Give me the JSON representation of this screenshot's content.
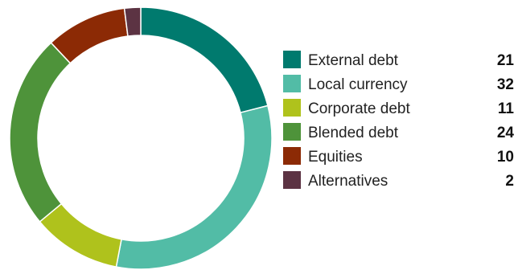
{
  "chart_data": {
    "type": "pie",
    "variant": "donut",
    "categories": [
      "External debt",
      "Local currency",
      "Corporate debt",
      "Blended debt",
      "Equities",
      "Alternatives"
    ],
    "values": [
      21,
      32,
      11,
      24,
      10,
      2
    ],
    "colors": [
      "#007A6E",
      "#52BCA6",
      "#AFC21C",
      "#4E933A",
      "#8C2A05",
      "#5C3343"
    ],
    "legend_position": "right"
  }
}
